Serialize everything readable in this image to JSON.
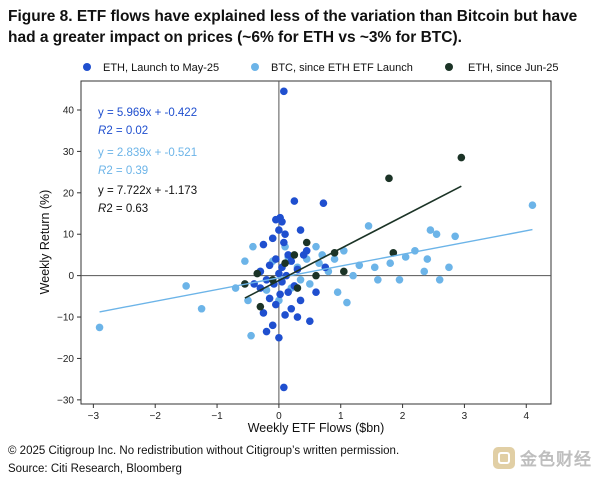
{
  "figure": {
    "title": "Figure 8. ETF flows have explained less of the variation than Bitcoin but have had a greater impact on prices (~6% for ETH vs ~3% for BTC)."
  },
  "footer": {
    "copyright": "© 2025 Citigroup Inc. No redistribution without Citigroup’s written permission.",
    "source": "Source: Citi Research, Bloomberg"
  },
  "watermark": {
    "text": "金色财经"
  },
  "colors": {
    "eth_launch": "#1f4fcf",
    "btc": "#6cb4e8",
    "eth_jun": "#1b3326",
    "axis": "#333333"
  },
  "chart_data": {
    "type": "scatter",
    "xlabel": "Weekly ETF Flows ($bn)",
    "ylabel": "Weekly Return (%)",
    "xlim": [
      -3.2,
      4.4
    ],
    "ylim": [
      -31,
      47
    ],
    "xticks": [
      -3,
      -2,
      -1,
      0,
      1,
      2,
      3,
      4
    ],
    "yticks": [
      -30,
      -20,
      -10,
      0,
      10,
      20,
      30,
      40
    ],
    "legend_position": "top",
    "series": [
      {
        "name": "ETH, Launch to May-25",
        "color": "#1f4fcf",
        "equation": "y = 5.969x + -0.422",
        "r2_label": "R",
        "r2_value": "2 = 0.02",
        "regression": {
          "slope": 5.969,
          "intercept": -0.422
        },
        "points": [
          [
            0.08,
            44.5
          ],
          [
            0.08,
            -27
          ],
          [
            0.25,
            18
          ],
          [
            0.72,
            17.5
          ],
          [
            0.35,
            11
          ],
          [
            0.02,
            14
          ],
          [
            -0.05,
            13.5
          ],
          [
            0.05,
            13
          ],
          [
            0.0,
            11
          ],
          [
            0.1,
            10
          ],
          [
            -0.25,
            7.5
          ],
          [
            -0.1,
            9
          ],
          [
            0.08,
            8
          ],
          [
            0.45,
            6
          ],
          [
            0.15,
            5
          ],
          [
            -0.05,
            4
          ],
          [
            0.2,
            3.5
          ],
          [
            -0.15,
            2.5
          ],
          [
            0.05,
            2
          ],
          [
            0.3,
            1.5
          ],
          [
            -0.3,
            1
          ],
          [
            0.0,
            0.5
          ],
          [
            0.12,
            0
          ],
          [
            -0.2,
            -1
          ],
          [
            0.05,
            -1.5
          ],
          [
            -0.08,
            -2
          ],
          [
            0.25,
            -2.5
          ],
          [
            -0.3,
            -3
          ],
          [
            0.15,
            -4
          ],
          [
            0.02,
            -4.5
          ],
          [
            -0.15,
            -5.5
          ],
          [
            0.35,
            -6
          ],
          [
            -0.05,
            -7
          ],
          [
            0.2,
            -8
          ],
          [
            -0.25,
            -9
          ],
          [
            0.1,
            -9.5
          ],
          [
            0.5,
            -11
          ],
          [
            -0.1,
            -12
          ],
          [
            -0.2,
            -13.5
          ],
          [
            0.0,
            -15
          ],
          [
            0.3,
            -10
          ],
          [
            0.6,
            -4
          ],
          [
            0.75,
            2
          ],
          [
            -0.4,
            -2
          ],
          [
            0.4,
            5
          ]
        ]
      },
      {
        "name": "BTC, since ETH ETF Launch",
        "color": "#6cb4e8",
        "equation": "y = 2.839x + -0.521",
        "r2_label": "R",
        "r2_value": "2 = 0.39",
        "regression": {
          "slope": 2.839,
          "intercept": -0.521
        },
        "points": [
          [
            -2.9,
            -12.5
          ],
          [
            -1.5,
            -2.5
          ],
          [
            -1.25,
            -8
          ],
          [
            -0.7,
            -3
          ],
          [
            -0.5,
            -6
          ],
          [
            -0.45,
            -14.5
          ],
          [
            -0.42,
            7
          ],
          [
            -0.3,
            1
          ],
          [
            -0.2,
            -3.5
          ],
          [
            -0.1,
            3.5
          ],
          [
            0.0,
            -6
          ],
          [
            0.1,
            7
          ],
          [
            0.2,
            -3
          ],
          [
            0.3,
            2
          ],
          [
            0.35,
            -1
          ],
          [
            0.45,
            4
          ],
          [
            0.5,
            -2
          ],
          [
            0.6,
            7
          ],
          [
            0.65,
            3
          ],
          [
            0.7,
            5
          ],
          [
            0.8,
            1
          ],
          [
            0.9,
            4
          ],
          [
            0.95,
            -4
          ],
          [
            1.05,
            6
          ],
          [
            1.1,
            -6.5
          ],
          [
            1.2,
            0
          ],
          [
            1.3,
            2.5
          ],
          [
            1.45,
            12
          ],
          [
            1.55,
            2
          ],
          [
            1.6,
            -1
          ],
          [
            1.8,
            3
          ],
          [
            1.95,
            -1
          ],
          [
            2.05,
            4.5
          ],
          [
            2.2,
            6
          ],
          [
            2.35,
            1
          ],
          [
            2.4,
            4
          ],
          [
            2.45,
            11
          ],
          [
            2.55,
            10
          ],
          [
            2.6,
            -1
          ],
          [
            2.75,
            2
          ],
          [
            2.85,
            9.5
          ],
          [
            4.1,
            17
          ],
          [
            -0.55,
            3.5
          ],
          [
            0.15,
            4.5
          ]
        ]
      },
      {
        "name": "ETH, since Jun-25",
        "color": "#1b3326",
        "equation": "y = 7.722x + -1.173",
        "r2_label": "R",
        "r2_value": "2 = 0.63",
        "regression": {
          "slope": 7.722,
          "intercept": -1.173
        },
        "points": [
          [
            2.95,
            28.5
          ],
          [
            1.78,
            23.5
          ],
          [
            1.85,
            5.5
          ],
          [
            0.45,
            8
          ],
          [
            0.25,
            5
          ],
          [
            -0.55,
            -2
          ],
          [
            -0.3,
            -7.5
          ],
          [
            0.3,
            -3
          ],
          [
            0.6,
            0
          ],
          [
            1.05,
            1
          ],
          [
            0.9,
            5.5
          ],
          [
            -0.1,
            -1
          ],
          [
            0.1,
            3
          ],
          [
            -0.35,
            0.5
          ]
        ]
      }
    ]
  }
}
